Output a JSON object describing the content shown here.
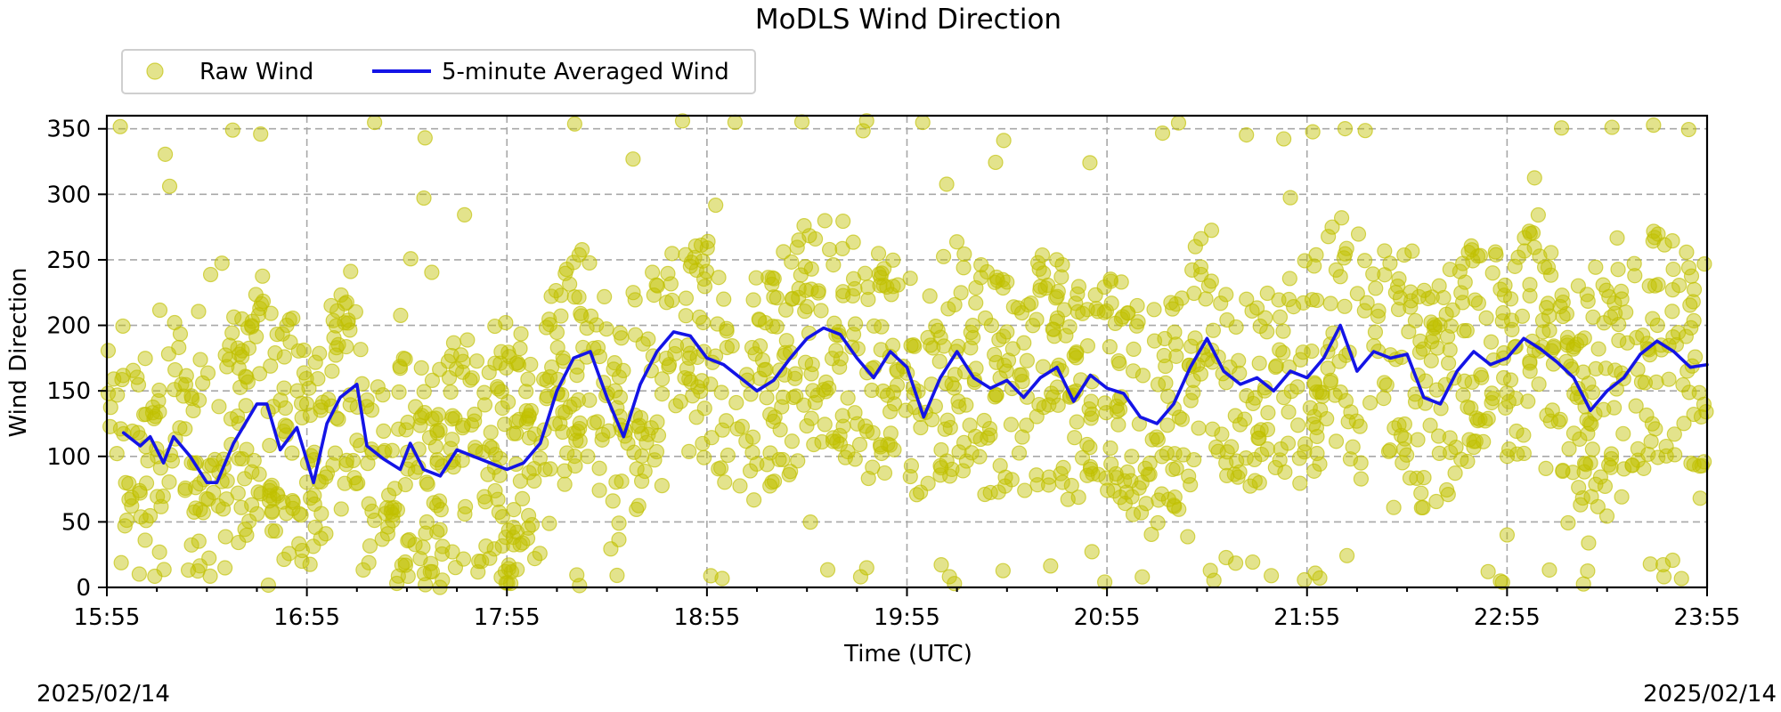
{
  "chart_data": {
    "type": "scatter",
    "title": "MoDLS Wind Direction",
    "xlabel": "Time (UTC)",
    "ylabel": "Wind Direction",
    "xlim": [
      "15:55",
      "23:55"
    ],
    "ylim": [
      0,
      360
    ],
    "x_ticks": [
      "15:55",
      "16:55",
      "17:55",
      "18:55",
      "19:55",
      "20:55",
      "21:55",
      "22:55",
      "23:55"
    ],
    "y_ticks": [
      0,
      50,
      100,
      150,
      200,
      250,
      300,
      350
    ],
    "grid": true,
    "legend_placement": "top-left",
    "date_left": "2025/02/14",
    "date_right": "2025/02/14",
    "series": [
      {
        "name": "Raw Wind",
        "type": "scatter",
        "color": "#c0c000",
        "description_level": "dense cloud of points following the averaged wind with large scatter"
      },
      {
        "name": "5-minute Averaged Wind",
        "type": "line",
        "color": "#1414e6",
        "points": [
          [
            "16:00",
            118
          ],
          [
            "16:05",
            108
          ],
          [
            "16:08",
            115
          ],
          [
            "16:12",
            95
          ],
          [
            "16:15",
            115
          ],
          [
            "16:20",
            100
          ],
          [
            "16:25",
            80
          ],
          [
            "16:28",
            80
          ],
          [
            "16:33",
            110
          ],
          [
            "16:40",
            140
          ],
          [
            "16:43",
            140
          ],
          [
            "16:47",
            105
          ],
          [
            "16:52",
            122
          ],
          [
            "16:57",
            80
          ],
          [
            "17:01",
            125
          ],
          [
            "17:05",
            145
          ],
          [
            "17:10",
            155
          ],
          [
            "17:13",
            108
          ],
          [
            "17:18",
            98
          ],
          [
            "17:23",
            90
          ],
          [
            "17:26",
            110
          ],
          [
            "17:30",
            90
          ],
          [
            "17:35",
            85
          ],
          [
            "17:40",
            105
          ],
          [
            "17:45",
            100
          ],
          [
            "17:50",
            95
          ],
          [
            "17:55",
            90
          ],
          [
            "18:00",
            95
          ],
          [
            "18:05",
            110
          ],
          [
            "18:10",
            150
          ],
          [
            "18:15",
            175
          ],
          [
            "18:20",
            180
          ],
          [
            "18:25",
            145
          ],
          [
            "18:30",
            115
          ],
          [
            "18:35",
            155
          ],
          [
            "18:40",
            180
          ],
          [
            "18:45",
            195
          ],
          [
            "18:50",
            192
          ],
          [
            "18:55",
            175
          ],
          [
            "19:00",
            170
          ],
          [
            "19:05",
            160
          ],
          [
            "19:10",
            150
          ],
          [
            "19:15",
            158
          ],
          [
            "19:20",
            175
          ],
          [
            "19:25",
            190
          ],
          [
            "19:30",
            198
          ],
          [
            "19:35",
            193
          ],
          [
            "19:40",
            175
          ],
          [
            "19:45",
            160
          ],
          [
            "19:50",
            180
          ],
          [
            "19:55",
            168
          ],
          [
            "20:00",
            130
          ],
          [
            "20:05",
            160
          ],
          [
            "20:10",
            180
          ],
          [
            "20:15",
            160
          ],
          [
            "20:20",
            152
          ],
          [
            "20:25",
            158
          ],
          [
            "20:30",
            145
          ],
          [
            "20:35",
            160
          ],
          [
            "20:40",
            168
          ],
          [
            "20:45",
            142
          ],
          [
            "20:50",
            162
          ],
          [
            "20:55",
            152
          ],
          [
            "21:00",
            148
          ],
          [
            "21:05",
            130
          ],
          [
            "21:10",
            125
          ],
          [
            "21:15",
            140
          ],
          [
            "21:20",
            168
          ],
          [
            "21:25",
            190
          ],
          [
            "21:30",
            165
          ],
          [
            "21:35",
            155
          ],
          [
            "21:40",
            160
          ],
          [
            "21:45",
            150
          ],
          [
            "21:50",
            165
          ],
          [
            "21:55",
            160
          ],
          [
            "22:00",
            175
          ],
          [
            "22:05",
            200
          ],
          [
            "22:10",
            165
          ],
          [
            "22:15",
            180
          ],
          [
            "22:20",
            175
          ],
          [
            "22:25",
            178
          ],
          [
            "22:30",
            145
          ],
          [
            "22:35",
            140
          ],
          [
            "22:40",
            165
          ],
          [
            "22:45",
            180
          ],
          [
            "22:50",
            170
          ],
          [
            "22:55",
            175
          ],
          [
            "23:00",
            190
          ],
          [
            "23:05",
            182
          ],
          [
            "23:10",
            172
          ],
          [
            "23:15",
            160
          ],
          [
            "23:20",
            135
          ],
          [
            "23:25",
            150
          ],
          [
            "23:30",
            160
          ],
          [
            "23:35",
            178
          ],
          [
            "23:40",
            188
          ],
          [
            "23:45",
            180
          ],
          [
            "23:50",
            168
          ],
          [
            "23:55",
            170
          ]
        ]
      }
    ]
  }
}
